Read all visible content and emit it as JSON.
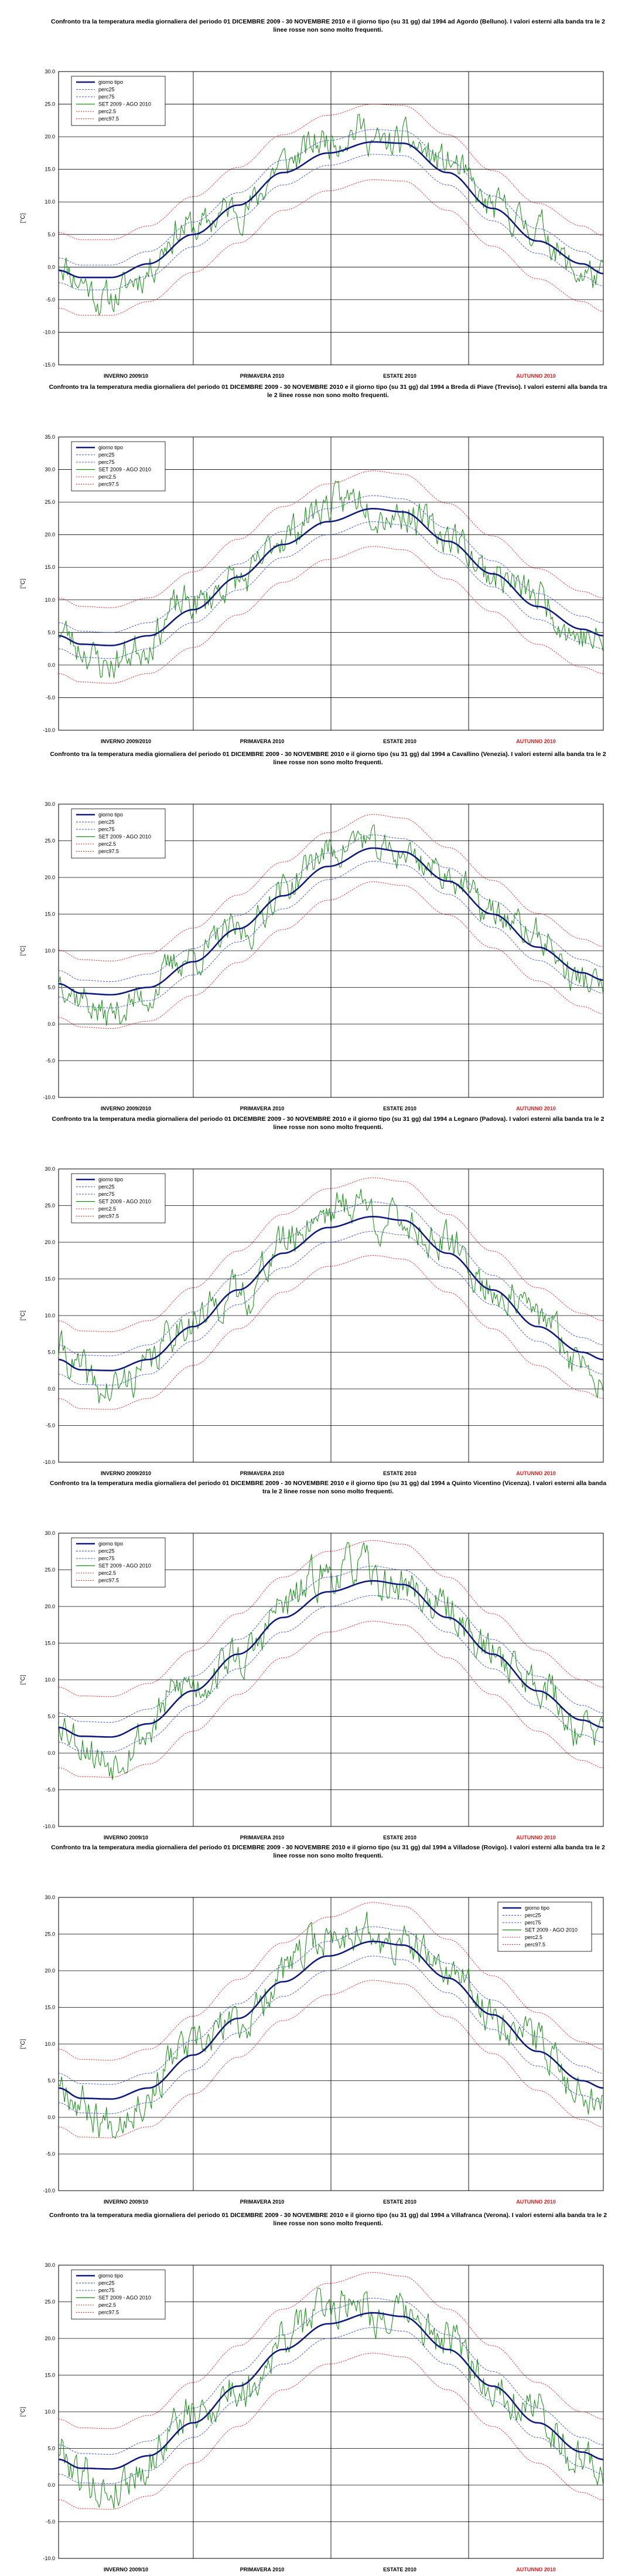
{
  "colors": {
    "giorno_tipo": "#101a7a",
    "perc25": "#3a5ad6",
    "perc75": "#3a5ad6",
    "set_ago": "#138a13",
    "perc25_outer": "#e52020",
    "perc975": "#e52020",
    "season_default": "#000000",
    "season_autumn": "#e51a1a"
  },
  "chart_data": [
    {
      "type": "line",
      "title": "Confronto tra la temperatura media giornaliera del periodo 01 DICEMBRE 2009 - 30 NOVEMBRE 2010 e il giorno tipo (su 31 gg) dal 1994 ad Agordo (Belluno). I valori esterni alla banda tra le 2 linee rosse non sono molto frequenti.",
      "ylabel": "[°C]",
      "ylim": [
        -15,
        30
      ],
      "yticks": [
        "30.0",
        "25.0",
        "20.0",
        "15.0",
        "10.0",
        "5.0",
        "0.0",
        "-5.0",
        "-10.0",
        "-15.0"
      ],
      "seasons": [
        "INVERNO 2009/10",
        "PRIMAVERA 2010",
        "ESTATE 2010",
        "AUTUNNO 2010"
      ],
      "legend": [
        "giorno tipo",
        "perc25",
        "perc75",
        "SET 2009 - AGO 2010",
        "perc2.5",
        "perc97.5"
      ],
      "legend_position": "top-left",
      "grid": true,
      "days": 365,
      "clim_points": [
        [
          0,
          -0.5
        ],
        [
          15,
          -1.6
        ],
        [
          35,
          -1.6
        ],
        [
          60,
          0.5
        ],
        [
          90,
          5
        ],
        [
          120,
          9.5
        ],
        [
          150,
          14.5
        ],
        [
          180,
          17.5
        ],
        [
          210,
          19.2
        ],
        [
          230,
          19.0
        ],
        [
          260,
          14.5
        ],
        [
          290,
          9.0
        ],
        [
          320,
          4.0
        ],
        [
          350,
          0.5
        ],
        [
          364,
          -1.0
        ]
      ],
      "band_inner": 1.9,
      "band_outer": 5.8,
      "obs_anom": [
        [
          0,
          1.5
        ],
        [
          15,
          -0.5
        ],
        [
          30,
          -3.5
        ],
        [
          55,
          -1.5
        ],
        [
          75,
          2.0
        ],
        [
          100,
          0.5
        ],
        [
          130,
          -1.0
        ],
        [
          150,
          1.5
        ],
        [
          175,
          2.0
        ],
        [
          200,
          2.5
        ],
        [
          215,
          -0.5
        ],
        [
          235,
          0.5
        ],
        [
          260,
          1.5
        ],
        [
          290,
          0.0
        ],
        [
          320,
          2.0
        ],
        [
          345,
          -1.5
        ],
        [
          364,
          -1.0
        ]
      ],
      "noise_amp": 2.2,
      "seed": 11
    },
    {
      "type": "line",
      "title": "Confronto tra la temperatura media giornaliera del periodo 01 DICEMBRE 2009 - 30 NOVEMBRE 2010 e il giorno tipo (su 31 gg) dal 1994 a Breda di Piave (Treviso). I valori esterni alla banda tra le 2 linee rosse non sono molto frequenti.",
      "ylabel": "[°C]",
      "ylim": [
        -10,
        35
      ],
      "yticks": [
        "35.0",
        "30.0",
        "25.0",
        "20.0",
        "15.0",
        "10.0",
        "5.0",
        "0.0",
        "-5.0",
        "-10.0"
      ],
      "seasons": [
        "INVERNO 2009/2010",
        "PRIMAVERA 2010",
        "ESTATE 2010",
        "AUTUNNO 2010"
      ],
      "legend": [
        "giorno tipo",
        "perc25",
        "perc75",
        "SET 2009 - AGO 2010",
        "perc2.5",
        "perc97.5"
      ],
      "legend_position": "top-left",
      "grid": true,
      "days": 365,
      "clim_points": [
        [
          0,
          4.5
        ],
        [
          15,
          3.2
        ],
        [
          35,
          3.0
        ],
        [
          60,
          4.5
        ],
        [
          90,
          8.5
        ],
        [
          120,
          13.5
        ],
        [
          150,
          18.5
        ],
        [
          180,
          22.0
        ],
        [
          210,
          24.0
        ],
        [
          230,
          23.5
        ],
        [
          260,
          19.0
        ],
        [
          290,
          14.0
        ],
        [
          320,
          9.0
        ],
        [
          350,
          5.5
        ],
        [
          364,
          4.5
        ]
      ],
      "band_inner": 2.0,
      "band_outer": 5.8,
      "obs_anom": [
        [
          0,
          1.0
        ],
        [
          15,
          -0.5
        ],
        [
          30,
          -3.0
        ],
        [
          55,
          -1.5
        ],
        [
          75,
          1.5
        ],
        [
          100,
          0.5
        ],
        [
          130,
          -1.0
        ],
        [
          150,
          1.5
        ],
        [
          175,
          2.5
        ],
        [
          200,
          2.5
        ],
        [
          215,
          -0.5
        ],
        [
          235,
          0.0
        ],
        [
          260,
          1.0
        ],
        [
          290,
          0.0
        ],
        [
          320,
          1.5
        ],
        [
          345,
          -1.0
        ],
        [
          364,
          -1.5
        ]
      ],
      "noise_amp": 2.3,
      "seed": 23
    },
    {
      "type": "line",
      "title": "Confronto tra la temperatura media giornaliera del periodo 01 DICEMBRE 2009 - 30 NOVEMBRE 2010 e il giorno tipo (su 31 gg) dal 1994 a Cavallino (Venezia). I valori esterni alla banda tra le 2 linee rosse non sono molto frequenti.",
      "ylabel": "[°C]",
      "ylim": [
        -10,
        30
      ],
      "yticks": [
        "30.0",
        "25.0",
        "20.0",
        "15.0",
        "10.0",
        "5.0",
        "0.0",
        "-5.0",
        "-10.0"
      ],
      "seasons": [
        "INVERNO 2009/2010",
        "PRIMAVERA 2010",
        "ESTATE 2010",
        "AUTUNNO 2010"
      ],
      "legend": [
        "giorno tipo",
        "perc25",
        "perc75",
        "SET 2009 - AGO 2010",
        "perc2.5",
        "perc97.5"
      ],
      "legend_position": "top-left",
      "grid": true,
      "days": 365,
      "clim_points": [
        [
          0,
          5.5
        ],
        [
          15,
          4.2
        ],
        [
          35,
          4.0
        ],
        [
          60,
          5.0
        ],
        [
          90,
          8.5
        ],
        [
          120,
          13.0
        ],
        [
          150,
          17.5
        ],
        [
          180,
          21.5
        ],
        [
          210,
          24.0
        ],
        [
          230,
          23.5
        ],
        [
          260,
          19.5
        ],
        [
          290,
          15.0
        ],
        [
          320,
          10.5
        ],
        [
          350,
          7.0
        ],
        [
          364,
          6.0
        ]
      ],
      "band_inner": 1.8,
      "band_outer": 4.6,
      "obs_anom": [
        [
          0,
          1.0
        ],
        [
          15,
          -0.5
        ],
        [
          30,
          -2.8
        ],
        [
          55,
          -1.5
        ],
        [
          75,
          1.0
        ],
        [
          100,
          0.5
        ],
        [
          130,
          -1.0
        ],
        [
          150,
          1.0
        ],
        [
          175,
          2.0
        ],
        [
          200,
          2.0
        ],
        [
          215,
          -0.5
        ],
        [
          235,
          0.0
        ],
        [
          260,
          1.0
        ],
        [
          290,
          0.0
        ],
        [
          320,
          1.5
        ],
        [
          345,
          -1.0
        ],
        [
          364,
          -1.0
        ]
      ],
      "noise_amp": 1.9,
      "seed": 37
    },
    {
      "type": "line",
      "title": "Confronto tra la temperatura media giornaliera del periodo 01 DICEMBRE 2009 - 30 NOVEMBRE 2010 e il giorno tipo (su 31 gg) dal 1994 a Legnaro (Padova). I valori esterni alla banda tra le 2 linee rosse non sono molto frequenti.",
      "ylabel": "[°C]",
      "ylim": [
        -10,
        30
      ],
      "yticks": [
        "30.0",
        "25.0",
        "20.0",
        "15.0",
        "10.0",
        "5.0",
        "0.0",
        "-5.0",
        "-10.0"
      ],
      "seasons": [
        "INVERNO 2009/2010",
        "PRIMAVERA 2010",
        "ESTATE 2010",
        "AUTUNNO 2010"
      ],
      "legend": [
        "giorno tipo",
        "perc25",
        "perc75",
        "SET 2009 - AGO 2010",
        "perc2.5",
        "perc97.5"
      ],
      "legend_position": "top-left",
      "grid": true,
      "days": 365,
      "clim_points": [
        [
          0,
          4.0
        ],
        [
          15,
          2.6
        ],
        [
          35,
          2.5
        ],
        [
          60,
          4.0
        ],
        [
          90,
          8.5
        ],
        [
          120,
          13.5
        ],
        [
          150,
          18.5
        ],
        [
          180,
          22.0
        ],
        [
          210,
          23.5
        ],
        [
          230,
          23.0
        ],
        [
          260,
          18.5
        ],
        [
          290,
          13.5
        ],
        [
          320,
          8.5
        ],
        [
          350,
          5.0
        ],
        [
          364,
          4.0
        ]
      ],
      "band_inner": 2.0,
      "band_outer": 5.3,
      "obs_anom": [
        [
          0,
          1.5
        ],
        [
          15,
          -0.5
        ],
        [
          30,
          -3.0
        ],
        [
          55,
          -1.5
        ],
        [
          75,
          1.5
        ],
        [
          100,
          0.5
        ],
        [
          130,
          -1.0
        ],
        [
          150,
          1.5
        ],
        [
          175,
          2.5
        ],
        [
          200,
          2.5
        ],
        [
          215,
          -0.5
        ],
        [
          235,
          0.0
        ],
        [
          260,
          1.0
        ],
        [
          290,
          0.0
        ],
        [
          320,
          1.5
        ],
        [
          345,
          -1.0
        ],
        [
          364,
          -1.5
        ]
      ],
      "noise_amp": 2.2,
      "seed": 41
    },
    {
      "type": "line",
      "title": "Confronto tra la temperatura media giornaliera del periodo 01 DICEMBRE 2009 - 30 NOVEMBRE 2010 e il giorno tipo (su 31 gg) dal 1994 a Quinto Vicentino (Vicenza). I valori esterni alla banda tra le 2 linee rosse non sono molto frequenti.",
      "ylabel": "[°C]",
      "ylim": [
        -10,
        30
      ],
      "yticks": [
        "30.0",
        "25.0",
        "20.0",
        "15.0",
        "10.0",
        "5.0",
        "0.0",
        "-5.0",
        "-10.0"
      ],
      "seasons": [
        "INVERNO 2009/10",
        "PRIMAVERA 2010",
        "ESTATE 2010",
        "AUTUNNO 2010"
      ],
      "legend": [
        "giorno tipo",
        "perc25",
        "perc75",
        "SET 2009 - AGO 2010",
        "perc2.5",
        "perc97.5"
      ],
      "legend_position": "top-left",
      "grid": true,
      "days": 365,
      "clim_points": [
        [
          0,
          3.5
        ],
        [
          15,
          2.3
        ],
        [
          35,
          2.2
        ],
        [
          60,
          4.0
        ],
        [
          90,
          8.5
        ],
        [
          120,
          13.5
        ],
        [
          150,
          18.5
        ],
        [
          180,
          22.0
        ],
        [
          210,
          23.5
        ],
        [
          230,
          23.0
        ],
        [
          260,
          18.5
        ],
        [
          290,
          13.5
        ],
        [
          320,
          8.5
        ],
        [
          350,
          4.5
        ],
        [
          364,
          3.5
        ]
      ],
      "band_inner": 2.0,
      "band_outer": 5.5,
      "obs_anom": [
        [
          0,
          1.5
        ],
        [
          15,
          -0.5
        ],
        [
          30,
          -3.2
        ],
        [
          55,
          -1.5
        ],
        [
          75,
          1.5
        ],
        [
          100,
          0.5
        ],
        [
          130,
          -1.0
        ],
        [
          150,
          1.5
        ],
        [
          175,
          2.5
        ],
        [
          200,
          2.5
        ],
        [
          215,
          -0.5
        ],
        [
          235,
          0.0
        ],
        [
          260,
          1.0
        ],
        [
          290,
          0.0
        ],
        [
          320,
          1.5
        ],
        [
          345,
          -1.0
        ],
        [
          364,
          -1.5
        ]
      ],
      "noise_amp": 2.3,
      "seed": 53
    },
    {
      "type": "line",
      "title": "Confronto tra la temperatura media giornaliera del periodo 01 DICEMBRE 2009 - 30 NOVEMBRE 2010 e il giorno tipo (su 31 gg) dal 1994 a Villadose (Rovigo). I valori esterni alla banda tra le 2 linee rosse non sono molto frequenti.",
      "ylabel": "[°C]",
      "ylim": [
        -10,
        30
      ],
      "yticks": [
        "30.0",
        "25.0",
        "20.0",
        "15.0",
        "10.0",
        "5.0",
        "0.0",
        "-5.0",
        "-10.0"
      ],
      "seasons": [
        "INVERNO 2009/10",
        "PRIMAVERA 2010",
        "ESTATE 2010",
        "AUTUNNO 2010"
      ],
      "legend": [
        "giorno tipo",
        "perc25",
        "perc75",
        "SET 2009 - AGO 2010",
        "perc2.5",
        "perc97.5"
      ],
      "legend_position": "top-right",
      "grid": true,
      "days": 365,
      "clim_points": [
        [
          0,
          4.0
        ],
        [
          15,
          2.6
        ],
        [
          35,
          2.5
        ],
        [
          60,
          4.0
        ],
        [
          90,
          8.5
        ],
        [
          120,
          13.5
        ],
        [
          150,
          18.5
        ],
        [
          180,
          22.0
        ],
        [
          210,
          24.0
        ],
        [
          230,
          23.5
        ],
        [
          260,
          19.0
        ],
        [
          290,
          14.0
        ],
        [
          320,
          9.0
        ],
        [
          350,
          5.0
        ],
        [
          364,
          4.0
        ]
      ],
      "band_inner": 2.0,
      "band_outer": 5.3,
      "obs_anom": [
        [
          0,
          1.5
        ],
        [
          15,
          -0.5
        ],
        [
          30,
          -3.0
        ],
        [
          55,
          -1.5
        ],
        [
          75,
          1.5
        ],
        [
          100,
          0.5
        ],
        [
          130,
          -1.0
        ],
        [
          150,
          1.5
        ],
        [
          175,
          2.5
        ],
        [
          200,
          2.5
        ],
        [
          215,
          -0.5
        ],
        [
          235,
          0.0
        ],
        [
          260,
          1.0
        ],
        [
          290,
          0.0
        ],
        [
          320,
          1.5
        ],
        [
          345,
          -1.0
        ],
        [
          364,
          -1.5
        ]
      ],
      "noise_amp": 2.2,
      "seed": 67
    },
    {
      "type": "line",
      "title": "Confronto tra la temperatura media giornaliera del periodo 01 DICEMBRE 2009 - 30 NOVEMBRE 2010 e il giorno tipo (su 31 gg) dal 1994 a Villafranca (Verona). I valori esterni alla banda tra le 2 linee rosse non sono molto frequenti.",
      "ylabel": "[°C]",
      "ylim": [
        -10,
        30
      ],
      "yticks": [
        "30.0",
        "25.0",
        "20.0",
        "15.0",
        "10.0",
        "5.0",
        "0.0",
        "-5.0",
        "-10.0"
      ],
      "seasons": [
        "INVERNO 2009/10",
        "PRIMAVERA 2010",
        "ESTATE 2010",
        "AUTUNNO 2010"
      ],
      "legend": [
        "giorno tipo",
        "perc25",
        "perc75",
        "SET 2009 - AGO 2010",
        "perc2.5",
        "perc97.5"
      ],
      "legend_position": "top-left",
      "grid": true,
      "days": 365,
      "clim_points": [
        [
          0,
          3.5
        ],
        [
          15,
          2.3
        ],
        [
          35,
          2.2
        ],
        [
          60,
          4.0
        ],
        [
          90,
          8.5
        ],
        [
          120,
          13.5
        ],
        [
          150,
          18.5
        ],
        [
          180,
          22.0
        ],
        [
          210,
          23.5
        ],
        [
          230,
          23.0
        ],
        [
          260,
          18.5
        ],
        [
          290,
          13.5
        ],
        [
          320,
          8.5
        ],
        [
          350,
          4.5
        ],
        [
          364,
          3.5
        ]
      ],
      "band_inner": 2.0,
      "band_outer": 5.5,
      "obs_anom": [
        [
          0,
          1.5
        ],
        [
          15,
          -0.5
        ],
        [
          30,
          -3.2
        ],
        [
          55,
          -1.5
        ],
        [
          75,
          1.5
        ],
        [
          100,
          0.5
        ],
        [
          130,
          -1.0
        ],
        [
          150,
          1.5
        ],
        [
          175,
          2.5
        ],
        [
          200,
          2.5
        ],
        [
          215,
          -0.5
        ],
        [
          235,
          0.0
        ],
        [
          260,
          1.0
        ],
        [
          290,
          0.0
        ],
        [
          320,
          1.5
        ],
        [
          345,
          -1.0
        ],
        [
          364,
          -1.5
        ]
      ],
      "noise_amp": 2.3,
      "seed": 79
    }
  ]
}
